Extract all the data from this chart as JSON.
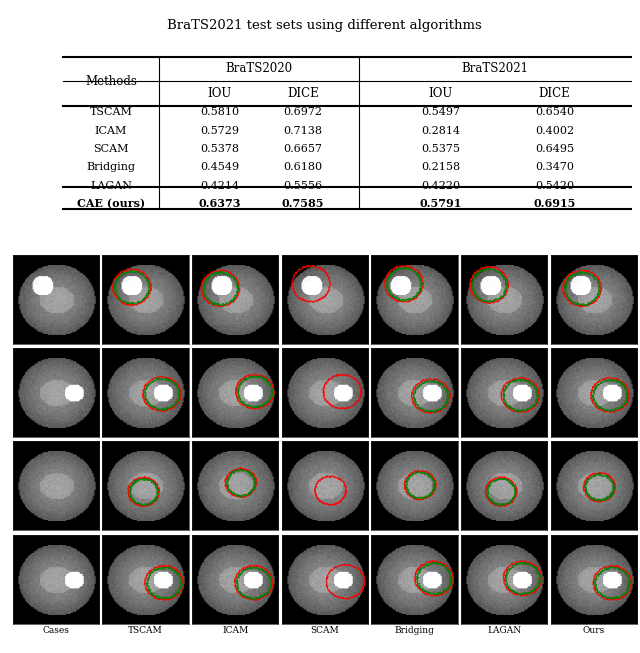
{
  "title": "BraTS2021 test sets using different algorithms",
  "table": {
    "methods": [
      "TSCAM",
      "ICAM",
      "SCAM",
      "Bridging",
      "LAGAN",
      "CAE (ours)"
    ],
    "headers_group": [
      "BraTS2020",
      "BraTS2021"
    ],
    "headers_sub": [
      "IOU",
      "DICE",
      "IOU",
      "DICE"
    ],
    "data": [
      [
        0.581,
        0.6972,
        0.5497,
        0.654
      ],
      [
        0.5729,
        0.7138,
        0.2814,
        0.4002
      ],
      [
        0.5378,
        0.6657,
        0.5375,
        0.6495
      ],
      [
        0.4549,
        0.618,
        0.2158,
        0.347
      ],
      [
        0.4214,
        0.5556,
        0.422,
        0.542
      ],
      [
        0.6373,
        0.7585,
        0.5791,
        0.6915
      ]
    ]
  },
  "col_labels": [
    "Cases",
    "TSCAM",
    "ICAM",
    "SCAM",
    "Bridging",
    "LAGAN",
    "Ours"
  ],
  "row_group_labels": [
    "BraTS2020",
    "BraTS2021"
  ],
  "bg_color": "#ffffff",
  "image_bg": "#000000"
}
